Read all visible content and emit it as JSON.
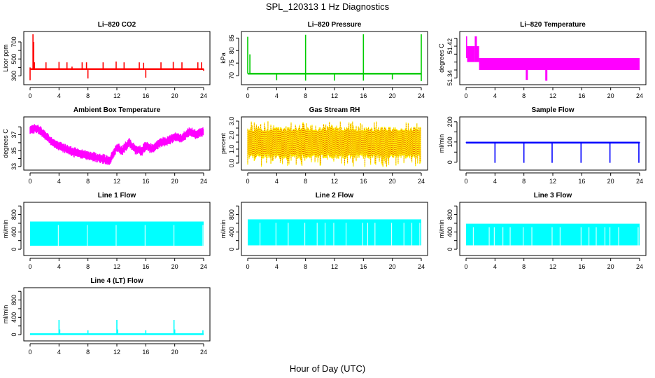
{
  "figure": {
    "title": "SPL_120313  1 Hz Diagnostics",
    "xlabel": "Hour of Day (UTC)"
  },
  "chart_data": [
    {
      "type": "line",
      "title": "Li–820 CO2",
      "ylabel": "Licor ppm",
      "color": "#ff0000",
      "xlim": [
        0,
        24
      ],
      "ylim": [
        230,
        790
      ],
      "x_ticks": [
        0,
        4,
        8,
        12,
        16,
        20,
        24
      ],
      "y_ticks": [
        300,
        400,
        500,
        600,
        700
      ],
      "y_tick_labels": [
        "300",
        "",
        "500",
        "",
        "700"
      ],
      "baseline": 380,
      "noise": 8,
      "spikes": [
        [
          0.0,
          250
        ],
        [
          0.0,
          400
        ],
        [
          0.4,
          790
        ],
        [
          0.5,
          700
        ],
        [
          0.6,
          460
        ],
        [
          2.2,
          460
        ],
        [
          4.0,
          465
        ],
        [
          5.1,
          460
        ],
        [
          5.8,
          410
        ],
        [
          7.2,
          460
        ],
        [
          7.8,
          460
        ],
        [
          8.0,
          270
        ],
        [
          10.1,
          460
        ],
        [
          11.9,
          470
        ],
        [
          13.0,
          460
        ],
        [
          15.1,
          460
        ],
        [
          15.7,
          455
        ],
        [
          16.0,
          280
        ],
        [
          18.1,
          460
        ],
        [
          19.8,
          465
        ],
        [
          21.0,
          460
        ],
        [
          23.2,
          460
        ],
        [
          23.7,
          460
        ],
        [
          24.0,
          360
        ]
      ]
    },
    {
      "type": "line",
      "title": "Li–820 Pressure",
      "ylabel": "kPa",
      "color": "#00cc00",
      "xlim": [
        0,
        24
      ],
      "ylim": [
        67.5,
        86.5
      ],
      "x_ticks": [
        0,
        4,
        8,
        12,
        16,
        20,
        24
      ],
      "y_ticks": [
        70,
        75,
        80,
        85
      ],
      "y_tick_labels": [
        "70",
        "75",
        "80",
        "85"
      ],
      "baseline": 70.8,
      "noise": 0.15,
      "spikes": [
        [
          0.0,
          85.5
        ],
        [
          0.3,
          78.5
        ],
        [
          4.0,
          68.2
        ],
        [
          8.0,
          86.3
        ],
        [
          8.0,
          68.0
        ],
        [
          12.0,
          68.0
        ],
        [
          16.0,
          86.5
        ],
        [
          16.0,
          68.0
        ],
        [
          20.0,
          68.5
        ],
        [
          24.0,
          86.5
        ],
        [
          24.0,
          67.8
        ]
      ]
    },
    {
      "type": "area",
      "title": "Li–820 Temperature",
      "ylabel": "degrees C",
      "color": "#ff00ff",
      "xlim": [
        0,
        24
      ],
      "ylim": [
        51.33,
        51.45
      ],
      "x_ticks": [
        0,
        4,
        8,
        12,
        16,
        20,
        24
      ],
      "y_ticks": [
        51.34,
        51.36,
        51.38,
        51.4,
        51.42,
        51.44
      ],
      "y_tick_labels": [
        "51.34",
        "",
        "",
        "",
        "51.42",
        ""
      ],
      "bands": [
        {
          "x0": 0.0,
          "x1": 0.15,
          "lo": 51.39,
          "hi": 51.445
        },
        {
          "x0": 0.15,
          "x1": 1.2,
          "lo": 51.38,
          "hi": 51.42
        },
        {
          "x0": 1.2,
          "x1": 1.5,
          "lo": 51.38,
          "hi": 51.445
        },
        {
          "x0": 1.5,
          "x1": 1.8,
          "lo": 51.38,
          "hi": 51.42
        },
        {
          "x0": 1.8,
          "x1": 24.0,
          "lo": 51.36,
          "hi": 51.39
        }
      ],
      "spikes": [
        [
          8.4,
          51.335
        ],
        [
          11.1,
          51.333
        ]
      ]
    },
    {
      "type": "line",
      "title": "Ambient Box Temperature",
      "ylabel": "degrees C",
      "color": "#ff00ff",
      "xlim": [
        0,
        24
      ],
      "ylim": [
        32.9,
        38.9
      ],
      "x_ticks": [
        0,
        4,
        8,
        12,
        16,
        20,
        24
      ],
      "y_ticks": [
        33,
        34,
        35,
        36,
        37,
        38
      ],
      "y_tick_labels": [
        "33",
        "",
        "35",
        "",
        "37",
        ""
      ],
      "trend": [
        [
          0,
          37.6
        ],
        [
          1,
          37.8
        ],
        [
          2,
          37.0
        ],
        [
          3,
          36.1
        ],
        [
          4,
          35.6
        ],
        [
          5,
          35.2
        ],
        [
          6,
          34.8
        ],
        [
          7,
          34.6
        ],
        [
          8,
          34.4
        ],
        [
          9,
          34.2
        ],
        [
          10,
          34.0
        ],
        [
          11,
          33.7
        ],
        [
          12,
          35.4
        ],
        [
          12.7,
          35.0
        ],
        [
          13.7,
          36.0
        ],
        [
          14.5,
          35.2
        ],
        [
          15.5,
          35.0
        ],
        [
          16,
          35.6
        ],
        [
          17,
          35.2
        ],
        [
          18,
          36.0
        ],
        [
          19,
          36.2
        ],
        [
          20,
          36.7
        ],
        [
          21,
          36.5
        ],
        [
          22,
          37.4
        ],
        [
          23,
          37.0
        ],
        [
          24,
          37.5
        ]
      ],
      "band_halfwidth": 0.5
    },
    {
      "type": "area",
      "title": "Gas Stream RH",
      "ylabel": "percent",
      "color": "#ffee00",
      "color2": "#dd2200",
      "xlim": [
        0,
        24
      ],
      "ylim": [
        -0.3,
        3.1
      ],
      "x_ticks": [
        0,
        4,
        8,
        12,
        16,
        20,
        24
      ],
      "y_ticks": [
        0.0,
        0.5,
        1.0,
        1.5,
        2.0,
        2.5,
        3.0
      ],
      "y_tick_labels": [
        "0.0",
        "",
        "1.0",
        "",
        "2.0",
        "",
        "3.0"
      ],
      "band_lo": 0.6,
      "band_hi": 2.3,
      "max": 3.0,
      "min": -0.3
    },
    {
      "type": "line",
      "title": "Sample Flow",
      "ylabel": "ml/min",
      "color": "#0000ff",
      "xlim": [
        0,
        24
      ],
      "ylim": [
        -25,
        210
      ],
      "x_ticks": [
        0,
        4,
        8,
        12,
        16,
        20,
        24
      ],
      "y_ticks": [
        0,
        50,
        100,
        150,
        200
      ],
      "y_tick_labels": [
        "0",
        "",
        "100",
        "",
        "200"
      ],
      "baseline": 97,
      "noise": 3,
      "spikes": [
        [
          4.0,
          -3
        ],
        [
          8.0,
          -3
        ],
        [
          11.9,
          -3
        ],
        [
          15.9,
          -3
        ],
        [
          19.9,
          -3
        ],
        [
          23.9,
          -3
        ]
      ]
    },
    {
      "type": "area",
      "title": "Line 1 Flow",
      "ylabel": "ml/min",
      "color": "#00ffff",
      "xlim": [
        0,
        24
      ],
      "ylim": [
        -80,
        1020
      ],
      "x_ticks": [
        0,
        4,
        8,
        12,
        16,
        20,
        24
      ],
      "y_ticks": [
        0,
        200,
        400,
        600,
        800,
        1000
      ],
      "y_tick_labels": [
        "0",
        "",
        "400",
        "",
        "800",
        ""
      ],
      "band_lo": 80,
      "band_hi": 640,
      "gaps": [
        3.9,
        7.9,
        11.9,
        15.9,
        19.9,
        23.9
      ]
    },
    {
      "type": "area",
      "title": "Line 2 Flow",
      "ylabel": "ml/min",
      "color": "#00ffff",
      "xlim": [
        0,
        24
      ],
      "ylim": [
        -80,
        1020
      ],
      "x_ticks": [
        0,
        4,
        8,
        12,
        16,
        20,
        24
      ],
      "y_ticks": [
        0,
        200,
        400,
        600,
        800,
        1000
      ],
      "y_tick_labels": [
        "0",
        "",
        "400",
        "",
        "800",
        ""
      ],
      "band_lo": 90,
      "band_hi": 690,
      "gaps": [
        1.7,
        3.9,
        5.6,
        7.9,
        9.6,
        10.7,
        11.9,
        13.6,
        15.9,
        16.6,
        17.6,
        19.9,
        21.6,
        22.7,
        23.8
      ]
    },
    {
      "type": "area",
      "title": "Line 3 Flow",
      "ylabel": "ml/min",
      "color": "#00ffff",
      "xlim": [
        0,
        24
      ],
      "ylim": [
        -80,
        1020
      ],
      "x_ticks": [
        0,
        4,
        8,
        12,
        16,
        20,
        24
      ],
      "y_ticks": [
        0,
        200,
        400,
        600,
        800,
        1000
      ],
      "y_tick_labels": [
        "0",
        "",
        "400",
        "",
        "800",
        ""
      ],
      "band_lo": 90,
      "band_hi": 590,
      "gaps": [
        1.0,
        3.2,
        3.9,
        5.1,
        6.1,
        7.9,
        9.1,
        11.9,
        13.0,
        15.9,
        17.0,
        18.0,
        19.2,
        19.9,
        21.1,
        23.8
      ]
    },
    {
      "type": "line",
      "title": "Line 4 (LT) Flow",
      "ylabel": "ml/min",
      "color": "#00ffff",
      "xlim": [
        0,
        24
      ],
      "ylim": [
        -80,
        1020
      ],
      "x_ticks": [
        0,
        4,
        8,
        12,
        16,
        20,
        24
      ],
      "y_ticks": [
        0,
        200,
        400,
        600,
        800,
        1000
      ],
      "y_tick_labels": [
        "0",
        "",
        "400",
        "",
        "800",
        ""
      ],
      "baseline": 10,
      "noise": 5,
      "spikes": [
        [
          4.0,
          340
        ],
        [
          4.1,
          120
        ],
        [
          8.0,
          100
        ],
        [
          12.0,
          340
        ],
        [
          12.1,
          120
        ],
        [
          16.0,
          100
        ],
        [
          19.9,
          340
        ],
        [
          20.0,
          120
        ],
        [
          23.9,
          100
        ]
      ]
    }
  ]
}
